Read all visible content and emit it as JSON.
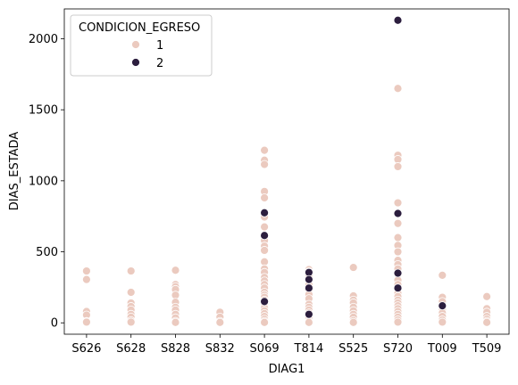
{
  "chart_data": {
    "type": "scatter",
    "title": "",
    "xlabel": "DIAG1",
    "ylabel": "DIAS_ESTADA",
    "categories": [
      "S626",
      "S628",
      "S828",
      "S832",
      "S069",
      "T814",
      "S525",
      "S720",
      "T009",
      "T509"
    ],
    "yticks": [
      0,
      500,
      1000,
      1500,
      2000
    ],
    "ylim": [
      -80,
      2210
    ],
    "grid": false,
    "legend": {
      "title": "CONDICION_EGRESO",
      "placement": "top-left",
      "entries": [
        "1",
        "2"
      ]
    },
    "colors": {
      "1": "#ebcabf",
      "2": "#2c1e3e"
    },
    "series": [
      {
        "name": "1",
        "points": [
          [
            "S626",
            365
          ],
          [
            "S626",
            305
          ],
          [
            "S626",
            80
          ],
          [
            "S626",
            55
          ],
          [
            "S626",
            10
          ],
          [
            "S626",
            5
          ],
          [
            "S628",
            365
          ],
          [
            "S628",
            215
          ],
          [
            "S628",
            140
          ],
          [
            "S628",
            115
          ],
          [
            "S628",
            90
          ],
          [
            "S628",
            60
          ],
          [
            "S628",
            40
          ],
          [
            "S628",
            15
          ],
          [
            "S628",
            5
          ],
          [
            "S828",
            370
          ],
          [
            "S828",
            270
          ],
          [
            "S828",
            255
          ],
          [
            "S828",
            235
          ],
          [
            "S828",
            195
          ],
          [
            "S828",
            145
          ],
          [
            "S828",
            110
          ],
          [
            "S828",
            90
          ],
          [
            "S828",
            60
          ],
          [
            "S828",
            35
          ],
          [
            "S828",
            10
          ],
          [
            "S828",
            3
          ],
          [
            "S832",
            75
          ],
          [
            "S832",
            40
          ],
          [
            "S832",
            10
          ],
          [
            "S832",
            3
          ],
          [
            "S069",
            1215
          ],
          [
            "S069",
            1145
          ],
          [
            "S069",
            1115
          ],
          [
            "S069",
            925
          ],
          [
            "S069",
            880
          ],
          [
            "S069",
            745
          ],
          [
            "S069",
            675
          ],
          [
            "S069",
            580
          ],
          [
            "S069",
            540
          ],
          [
            "S069",
            510
          ],
          [
            "S069",
            430
          ],
          [
            "S069",
            380
          ],
          [
            "S069",
            355
          ],
          [
            "S069",
            320
          ],
          [
            "S069",
            295
          ],
          [
            "S069",
            270
          ],
          [
            "S069",
            245
          ],
          [
            "S069",
            215
          ],
          [
            "S069",
            195
          ],
          [
            "S069",
            180
          ],
          [
            "S069",
            160
          ],
          [
            "S069",
            130
          ],
          [
            "S069",
            105
          ],
          [
            "S069",
            85
          ],
          [
            "S069",
            65
          ],
          [
            "S069",
            45
          ],
          [
            "S069",
            25
          ],
          [
            "S069",
            10
          ],
          [
            "S069",
            3
          ],
          [
            "T814",
            375
          ],
          [
            "T814",
            360
          ],
          [
            "T814",
            330
          ],
          [
            "T814",
            300
          ],
          [
            "T814",
            270
          ],
          [
            "T814",
            230
          ],
          [
            "T814",
            200
          ],
          [
            "T814",
            170
          ],
          [
            "T814",
            130
          ],
          [
            "T814",
            110
          ],
          [
            "T814",
            90
          ],
          [
            "T814",
            70
          ],
          [
            "T814",
            50
          ],
          [
            "T814",
            30
          ],
          [
            "T814",
            10
          ],
          [
            "T814",
            3
          ],
          [
            "S525",
            390
          ],
          [
            "S525",
            190
          ],
          [
            "S525",
            160
          ],
          [
            "S525",
            140
          ],
          [
            "S525",
            110
          ],
          [
            "S525",
            85
          ],
          [
            "S525",
            60
          ],
          [
            "S525",
            40
          ],
          [
            "S525",
            15
          ],
          [
            "S525",
            3
          ],
          [
            "S720",
            1650
          ],
          [
            "S720",
            1180
          ],
          [
            "S720",
            1150
          ],
          [
            "S720",
            1100
          ],
          [
            "S720",
            845
          ],
          [
            "S720",
            700
          ],
          [
            "S720",
            600
          ],
          [
            "S720",
            545
          ],
          [
            "S720",
            500
          ],
          [
            "S720",
            440
          ],
          [
            "S720",
            410
          ],
          [
            "S720",
            380
          ],
          [
            "S720",
            340
          ],
          [
            "S720",
            300
          ],
          [
            "S720",
            270
          ],
          [
            "S720",
            240
          ],
          [
            "S720",
            210
          ],
          [
            "S720",
            185
          ],
          [
            "S720",
            160
          ],
          [
            "S720",
            140
          ],
          [
            "S720",
            120
          ],
          [
            "S720",
            100
          ],
          [
            "S720",
            80
          ],
          [
            "S720",
            60
          ],
          [
            "S720",
            40
          ],
          [
            "S720",
            20
          ],
          [
            "S720",
            5
          ],
          [
            "T009",
            335
          ],
          [
            "T009",
            180
          ],
          [
            "T009",
            150
          ],
          [
            "T009",
            120
          ],
          [
            "T009",
            95
          ],
          [
            "T009",
            70
          ],
          [
            "T009",
            45
          ],
          [
            "T009",
            20
          ],
          [
            "T009",
            5
          ],
          [
            "T509",
            185
          ],
          [
            "T509",
            100
          ],
          [
            "T509",
            75
          ],
          [
            "T509",
            45
          ],
          [
            "T509",
            25
          ],
          [
            "T509",
            10
          ],
          [
            "T509",
            3
          ]
        ]
      },
      {
        "name": "2",
        "points": [
          [
            "S069",
            775
          ],
          [
            "S069",
            615
          ],
          [
            "S069",
            150
          ],
          [
            "T814",
            355
          ],
          [
            "T814",
            305
          ],
          [
            "T814",
            245
          ],
          [
            "T814",
            60
          ],
          [
            "S720",
            2130
          ],
          [
            "S720",
            770
          ],
          [
            "S720",
            350
          ],
          [
            "S720",
            245
          ],
          [
            "T009",
            120
          ]
        ]
      }
    ]
  }
}
